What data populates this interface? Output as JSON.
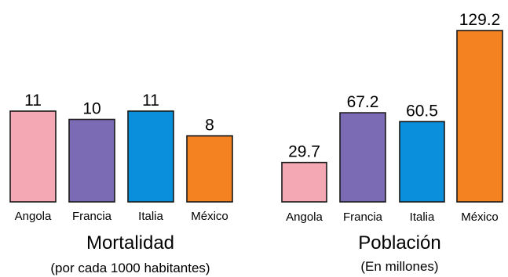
{
  "chart_data": [
    {
      "type": "bar",
      "title": "Mortalidad",
      "subtitle": "(por cada 1000 habitantes)",
      "categories": [
        "Angola",
        "Francia",
        "Italia",
        "México"
      ],
      "values": [
        11,
        10,
        11,
        8
      ],
      "value_labels": [
        "11",
        "10",
        "11",
        "8"
      ],
      "colors": [
        "#f4a8b4",
        "#7b6bb5",
        "#0a8fdc",
        "#f58220"
      ],
      "ylim": [
        0,
        11
      ],
      "grid": false,
      "axes_visible": false
    },
    {
      "type": "bar",
      "title": "Población",
      "subtitle": "(En millones)",
      "categories": [
        "Angola",
        "Francia",
        "Italia",
        "México"
      ],
      "values": [
        29.7,
        67.2,
        60.5,
        129.2
      ],
      "value_labels": [
        "29.7",
        "67.2",
        "60.5",
        "129.2"
      ],
      "colors": [
        "#f4a8b4",
        "#7b6bb5",
        "#0a8fdc",
        "#f58220"
      ],
      "ylim": [
        0,
        129.2
      ],
      "grid": false,
      "axes_visible": false
    }
  ]
}
